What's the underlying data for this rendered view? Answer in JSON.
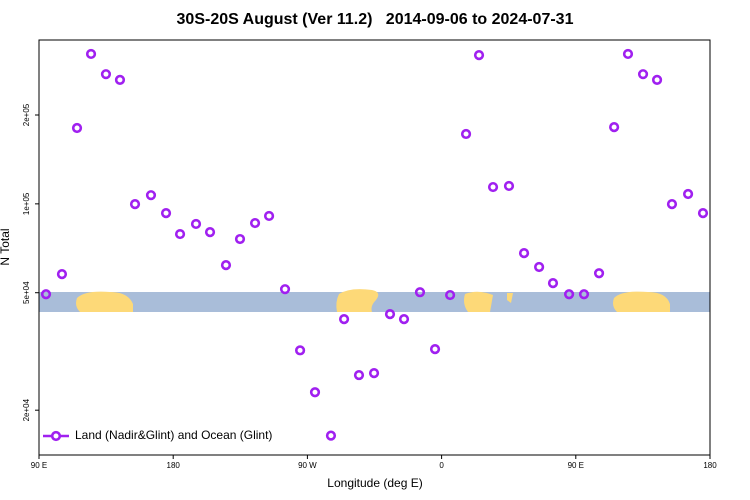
{
  "chart_data": {
    "type": "scatter",
    "title": "30S-20S August (Ver 11.2)   2014-09-06 to 2024-07-31",
    "xlabel": "Longitude (deg E)",
    "ylabel": "N Total",
    "xlim": [
      90,
      540
    ],
    "xticks": [
      {
        "value": 90,
        "label": "90 E"
      },
      180,
      {
        "value": 270,
        "label": "90 W"
      },
      {
        "value": 360,
        "label": "0"
      },
      {
        "value": 450,
        "label": "90 E"
      },
      {
        "value": 540,
        "label": "180"
      }
    ],
    "ylim": [
      14100,
      359000
    ],
    "log_y": true,
    "yticks": [
      {
        "value": 20000,
        "label": "2e+04"
      },
      {
        "value": 50000,
        "label": "5e+04"
      },
      {
        "value": 100000,
        "label": "1e+05"
      },
      {
        "value": 200000,
        "label": "2e+05"
      }
    ],
    "legend": "bottom-left",
    "series": [
      {
        "name": "Land (Nadir&Glint) and Ocean (Glint)",
        "color": "#a020f0",
        "x": [
          94.7,
          105.4,
          115.5,
          124.9,
          134.9,
          144.3,
          154.4,
          165.1,
          175.2,
          184.6,
          195.3,
          204.7,
          215.4,
          224.8,
          234.9,
          244.3,
          255.0,
          265.1,
          275.1,
          285.8,
          294.6,
          304.6,
          314.7,
          325.4,
          334.8,
          345.5,
          355.6,
          365.7,
          376.4,
          385.1,
          394.5,
          405.2,
          415.3,
          425.4,
          434.7,
          445.5,
          455.5,
          465.6,
          475.7,
          485.0,
          495.1,
          504.5,
          514.5,
          525.3,
          535.3
        ],
        "values": [
          49400,
          57800,
          180700,
          322000,
          275000,
          263000,
          99800,
          107000,
          93000,
          79000,
          85500,
          80200,
          62000,
          76000,
          86100,
          91000,
          51400,
          31900,
          23000,
          16400,
          40700,
          26300,
          26700,
          42300,
          40700,
          50200,
          32200,
          49100,
          172500,
          319000,
          114000,
          115000,
          68100,
          61100,
          53900,
          49400,
          49400,
          58200,
          182000,
          322000,
          275000,
          263000,
          99800,
          108000,
          93000
        ]
      }
    ]
  }
}
